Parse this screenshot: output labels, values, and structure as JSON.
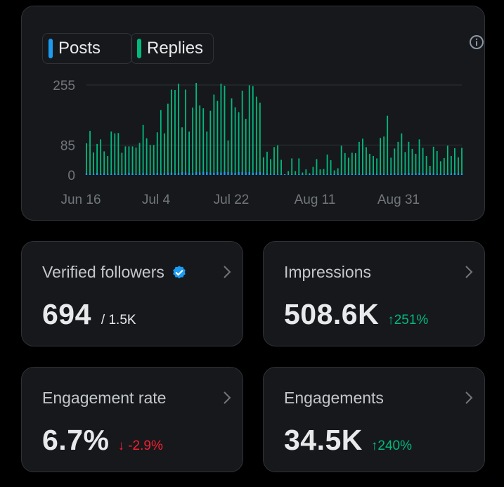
{
  "legend": {
    "posts": {
      "label": "Posts",
      "color": "#1d9bf0"
    },
    "replies": {
      "label": "Replies",
      "color": "#00ba7c"
    }
  },
  "chart_data": {
    "type": "bar",
    "x_tick_labels": [
      "Jun 16",
      "Jul 4",
      "Jul 22",
      "Aug 11",
      "Aug 31"
    ],
    "y_tick_labels": [
      "255",
      "85",
      "0"
    ],
    "y_ticks": [
      255,
      85,
      0
    ],
    "ylim": [
      0,
      255
    ],
    "series": [
      {
        "name": "Posts",
        "color": "#1d9bf0",
        "values": [
          5,
          3,
          4,
          6,
          3,
          5,
          4,
          3,
          5,
          4,
          3,
          4,
          6,
          5,
          3,
          4,
          5,
          4,
          3,
          5,
          6,
          4,
          5,
          6,
          7,
          5,
          6,
          8,
          7,
          6,
          5,
          8,
          7,
          9,
          8,
          7,
          6,
          8,
          7,
          9,
          8,
          7,
          6,
          8,
          9,
          7,
          8,
          6,
          7,
          8,
          5,
          4,
          3,
          4,
          2,
          3,
          2,
          1,
          2,
          1,
          2,
          2,
          1,
          2,
          3,
          2,
          1,
          2,
          3,
          2,
          3,
          4,
          3,
          2,
          4,
          3,
          2,
          4,
          3,
          4,
          5,
          4,
          3,
          5,
          4,
          3,
          4,
          5,
          4,
          3,
          5,
          6,
          4,
          5,
          6,
          5,
          4,
          6,
          5,
          3,
          4,
          3,
          5,
          4,
          6,
          5,
          4
        ]
      },
      {
        "name": "Replies",
        "color": "#00ba7c",
        "values": [
          85,
          122,
          60,
          82,
          98,
          62,
          50,
          120,
          113,
          115,
          60,
          77,
          75,
          76,
          75,
          87,
          137,
          100,
          82,
          80,
          115,
          180,
          113,
          196,
          235,
          236,
          253,
          127,
          235,
          117,
          186,
          253,
          190,
          180,
          115,
          175,
          222,
          202,
          252,
          244,
          90,
          210,
          186,
          170,
          230,
          152,
          246,
          246,
          215,
          197,
          45,
          62,
          42,
          75,
          82,
          40,
          0,
          10,
          45,
          10,
          45,
          5,
          15,
          3,
          20,
          43,
          15,
          15,
          55,
          40,
          10,
          15,
          80,
          60,
          45,
          60,
          60,
          90,
          100,
          75,
          55,
          50,
          44,
          100,
          105,
          165,
          45,
          70,
          90,
          115,
          60,
          88,
          70,
          55,
          95,
          72,
          50,
          20,
          75,
          65,
          35,
          45,
          78,
          50,
          70,
          45,
          73
        ]
      }
    ]
  },
  "stats": {
    "verified_followers": {
      "title": "Verified followers",
      "value": "694",
      "sub": "/ 1.5K"
    },
    "impressions": {
      "title": "Impressions",
      "value": "508.6K",
      "change": "251%",
      "direction": "up"
    },
    "engagement_rate": {
      "title": "Engagement rate",
      "value": "6.7%",
      "change": "-2.9%",
      "direction": "down"
    },
    "engagements": {
      "title": "Engagements",
      "value": "34.5K",
      "change": "240%",
      "direction": "up"
    }
  }
}
